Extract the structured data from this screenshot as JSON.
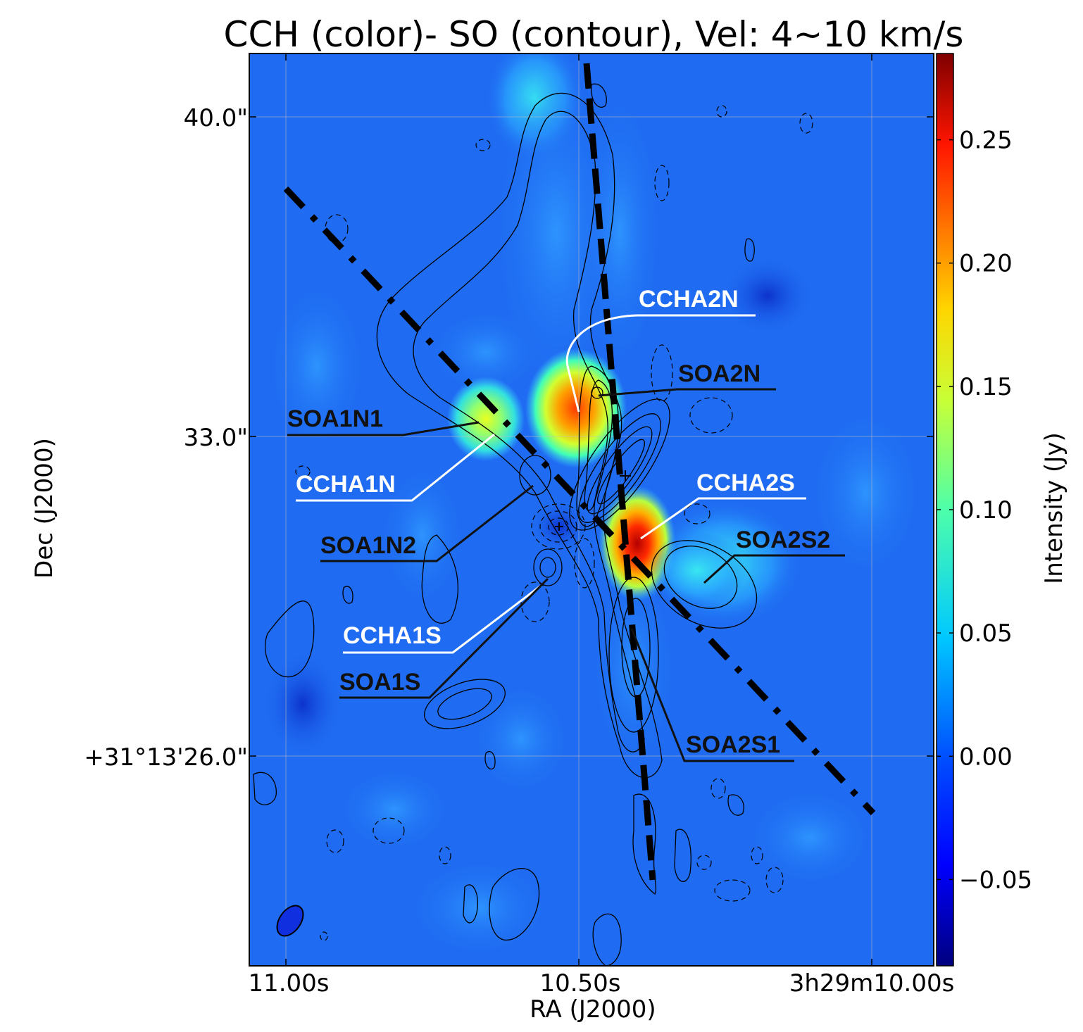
{
  "chart_data": {
    "type": "heatmap",
    "title": "CCH (color)- SO (contour), Vel: 4~10 km/s",
    "xlabel": "RA (J2000)",
    "ylabel": "Dec (J2000)",
    "x_ticks": [
      "11.00s",
      "10.50s",
      "3h29m10.00s"
    ],
    "y_ticks": [
      "40.0\"",
      "33.0\"",
      "+31°13'26.0\""
    ],
    "x_range_s": [
      11.063,
      9.89
    ],
    "y_range_arcsec": [
      41.4,
      21.4
    ],
    "grid": true,
    "colorbar": {
      "label": "Intensity (Jy)",
      "ticks": [
        "0.25",
        "0.20",
        "0.15",
        "0.10",
        "0.05",
        "0.00",
        "−0.05"
      ],
      "tick_values": [
        0.25,
        0.2,
        0.15,
        0.1,
        0.05,
        0.0,
        -0.05
      ],
      "range": [
        -0.085,
        0.285
      ],
      "colormap": "jet"
    },
    "annotations": [
      {
        "name": "CCHA2N",
        "color": "white"
      },
      {
        "name": "SOA2N",
        "color": "black"
      },
      {
        "name": "SOA1N1",
        "color": "black"
      },
      {
        "name": "CCHA1N",
        "color": "white"
      },
      {
        "name": "CCHA2S",
        "color": "white"
      },
      {
        "name": "SOA1N2",
        "color": "black"
      },
      {
        "name": "SOA2S2",
        "color": "black"
      },
      {
        "name": "CCHA1S",
        "color": "white"
      },
      {
        "name": "SOA1S",
        "color": "black"
      },
      {
        "name": "SOA2S1",
        "color": "black"
      }
    ],
    "colors": {
      "background": "#1f6cf2",
      "contour": "#000000"
    }
  }
}
